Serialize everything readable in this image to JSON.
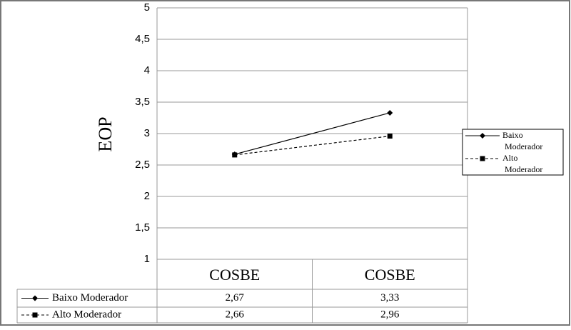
{
  "chart_data": {
    "type": "line",
    "y_label": "EOP",
    "categories": [
      "COSBE",
      "COSBE"
    ],
    "series": [
      {
        "name": "Baixo Moderador",
        "color": "#000000",
        "dash": "solid",
        "marker": "diamond",
        "values": [
          2.67,
          3.33
        ],
        "value_labels": [
          "2,67",
          "3,33"
        ]
      },
      {
        "name": "Alto Moderador",
        "color": "#000000",
        "dash": "dashed",
        "marker": "square",
        "values": [
          2.66,
          2.96
        ],
        "value_labels": [
          "2,66",
          "2,96"
        ]
      }
    ],
    "ylim": [
      1,
      5
    ],
    "yticks": [
      1,
      {
        "value": 1.5,
        "label": "1,5"
      },
      2,
      {
        "value": 2.5,
        "label": "2,5"
      },
      3,
      {
        "value": 3.5,
        "label": "3,5"
      },
      4,
      {
        "value": 4.5,
        "label": "4,5"
      },
      5
    ],
    "grid": true,
    "legend": "right"
  }
}
